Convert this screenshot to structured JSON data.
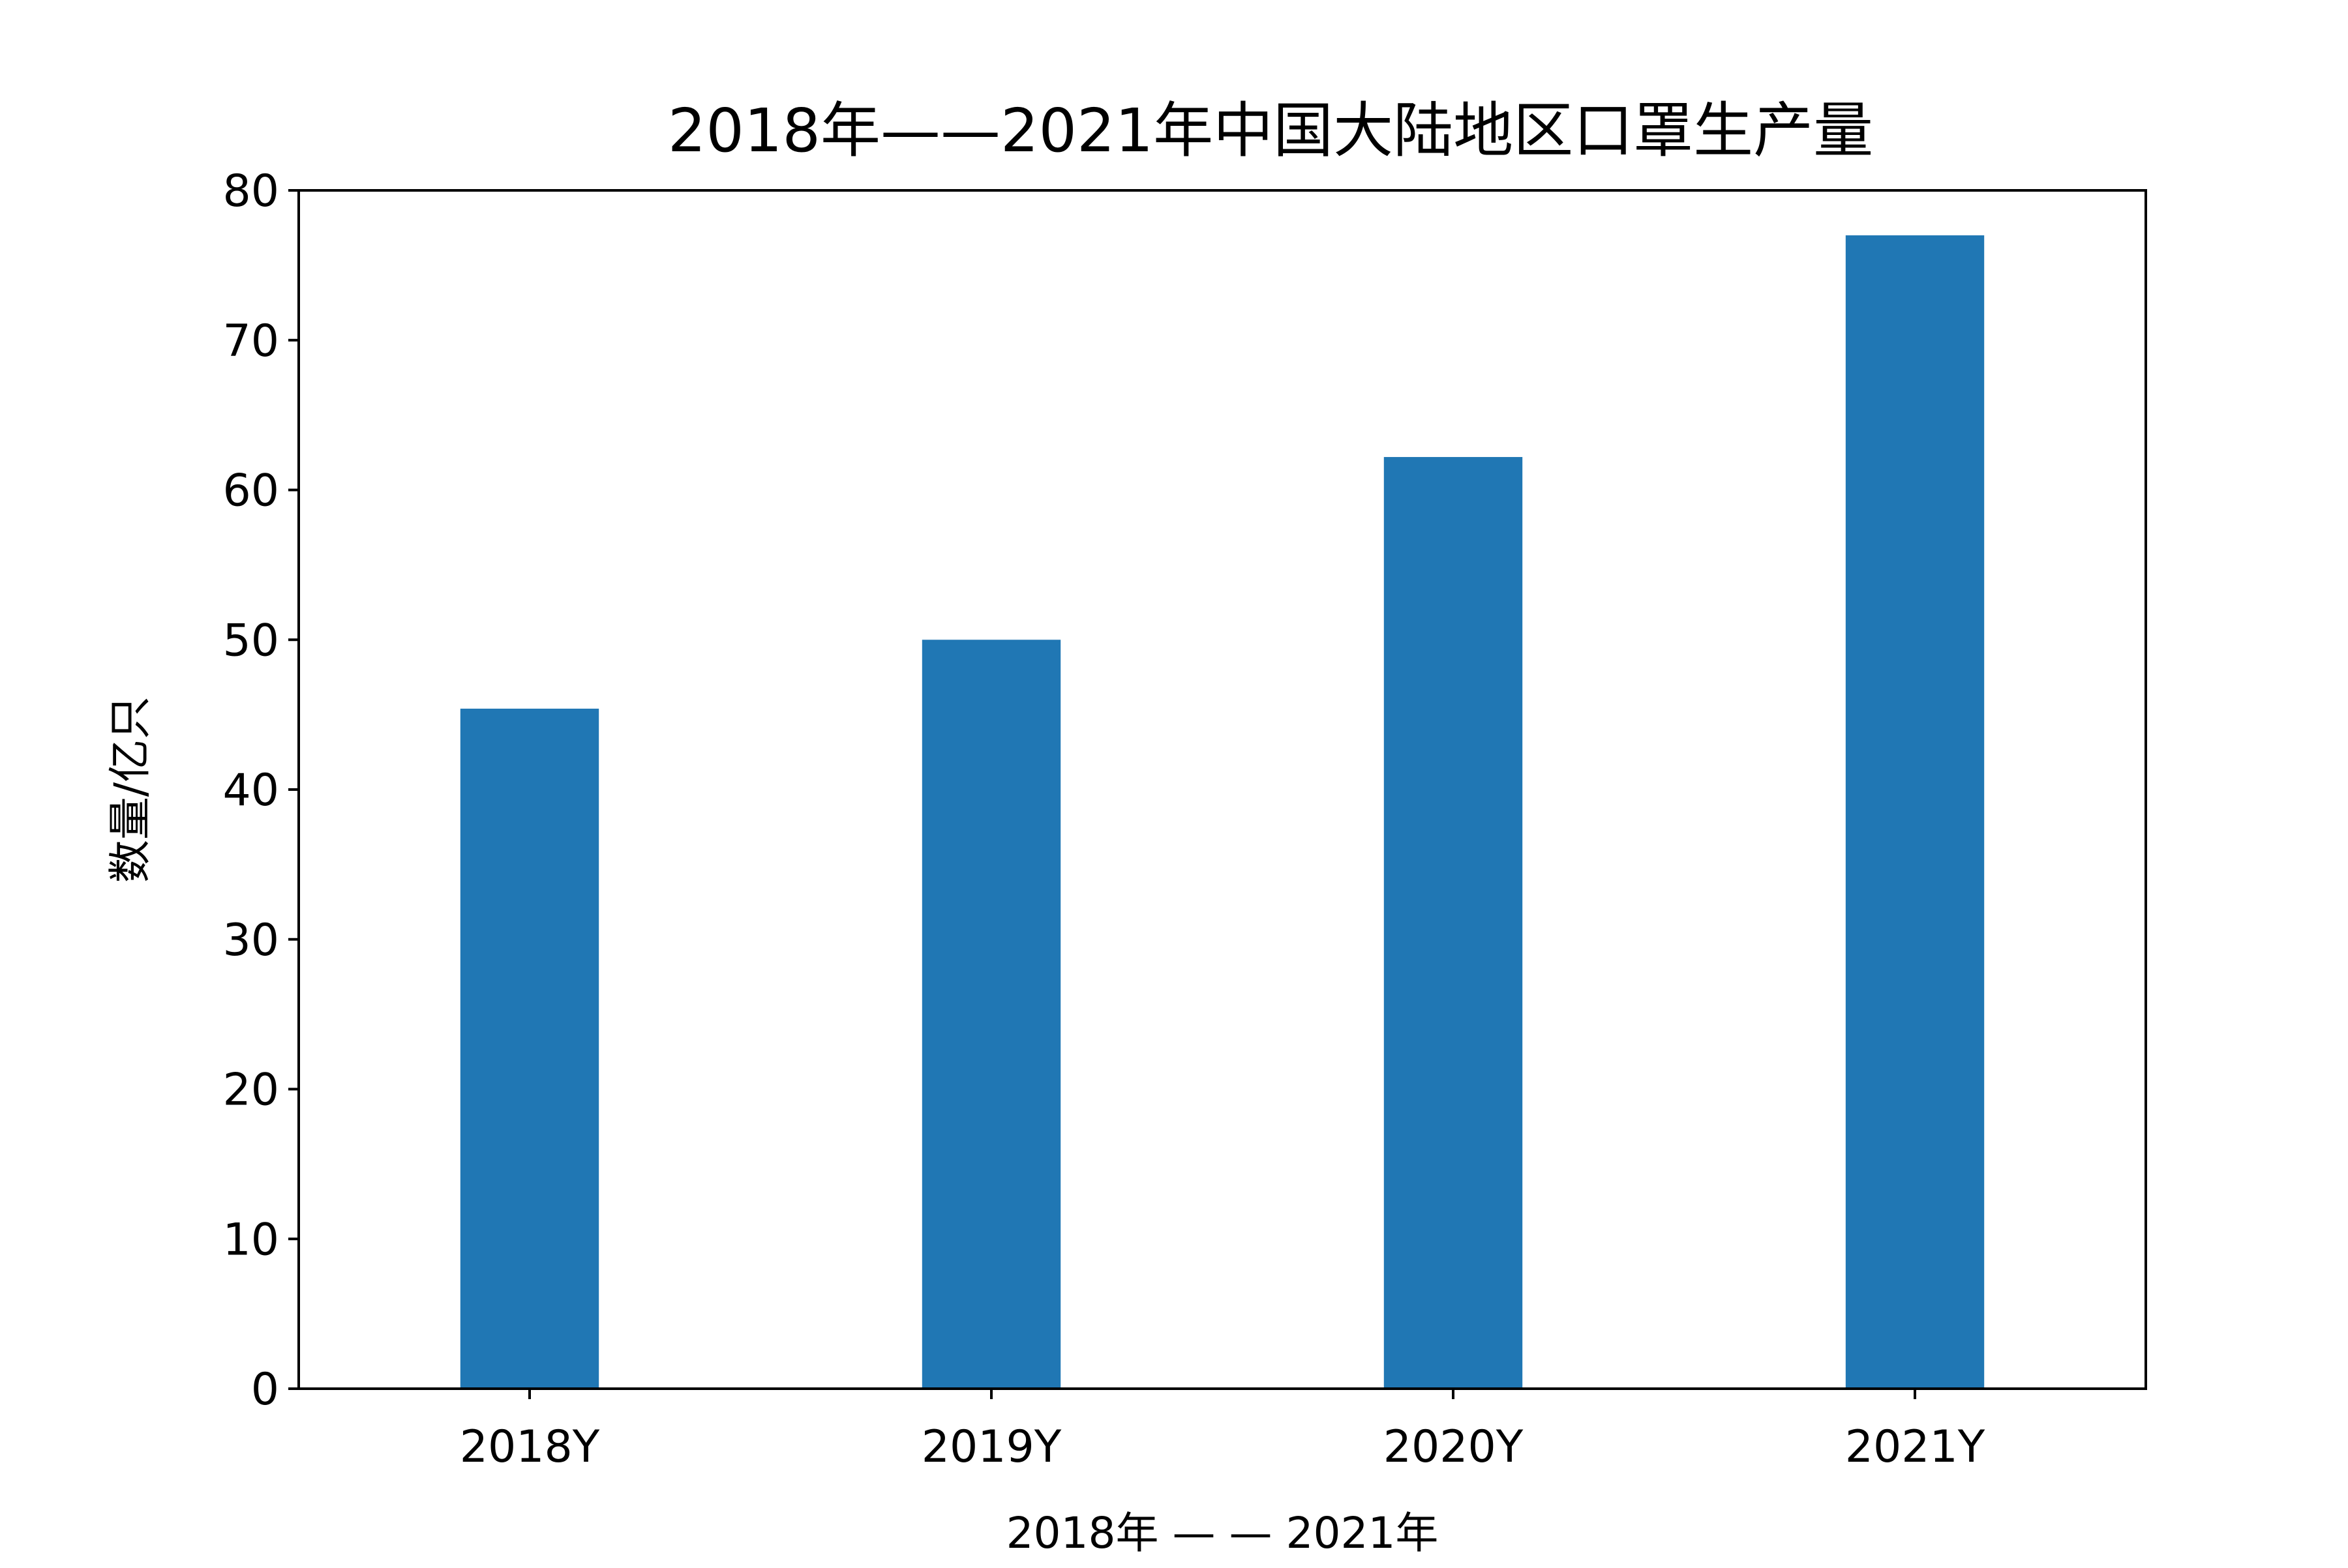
{
  "chart_data": {
    "type": "bar",
    "title": "2018年——2021年中国大陆地区口罩生产量",
    "xlabel": "2018年 — — 2021年",
    "ylabel": "数量/亿只",
    "categories": [
      "2018Y",
      "2019Y",
      "2020Y",
      "2021Y"
    ],
    "values": [
      45.4,
      50.0,
      62.2,
      77.0
    ],
    "ylim": [
      0,
      80
    ],
    "yticks": [
      0,
      10,
      20,
      30,
      40,
      50,
      60,
      70,
      80
    ],
    "grid": false,
    "legend": "none"
  },
  "colors": {
    "bar": "#2077b4",
    "axis": "#000000",
    "background": "#ffffff"
  }
}
